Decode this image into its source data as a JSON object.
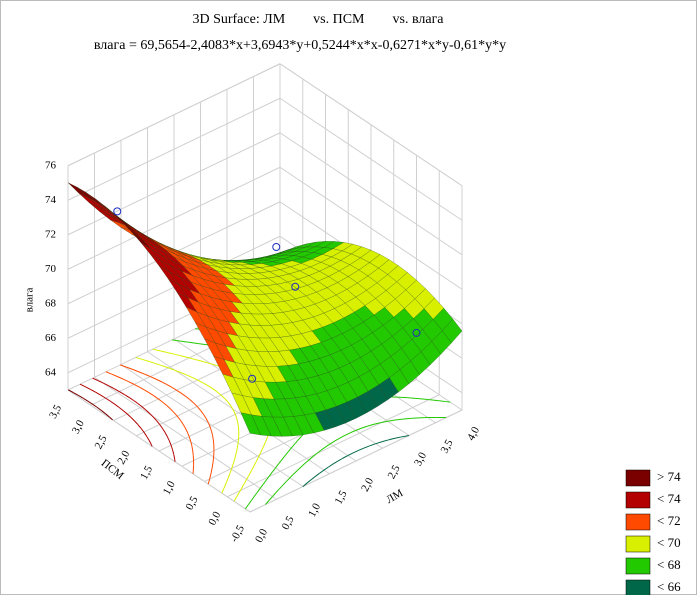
{
  "chart_data": {
    "type": "surface",
    "title": "3D Surface: ЛМ        vs. ПСМ        vs. влага",
    "subtitle": "влага = 69,5654-2,4083*x+3,6943*y+0,5244*x*x-0,6271*x*y-0,61*y*y",
    "coefficients": [
      69.5654,
      -2.4083,
      3.6943,
      0.5244,
      -0.6271,
      -0.61
    ],
    "x_label": "ЛМ",
    "y_label": "ПСМ",
    "z_label": "влага",
    "xlim": [
      0,
      4
    ],
    "ylim": [
      -0.5,
      3.5
    ],
    "zlim": [
      63,
      76
    ],
    "xticks": [
      {
        "value": 0,
        "label": "0,0"
      },
      {
        "value": 0.5,
        "label": "0,5"
      },
      {
        "value": 1,
        "label": "1,0"
      },
      {
        "value": 1.5,
        "label": "1,5"
      },
      {
        "value": 2,
        "label": "2,0"
      },
      {
        "value": 2.5,
        "label": "2,5"
      },
      {
        "value": 3,
        "label": "3,0"
      },
      {
        "value": 3.5,
        "label": "3,5"
      },
      {
        "value": 4,
        "label": "4,0"
      }
    ],
    "yticks": [
      {
        "value": -0.5,
        "label": "-0,5"
      },
      {
        "value": 0,
        "label": "0,0"
      },
      {
        "value": 0.5,
        "label": "0,5"
      },
      {
        "value": 1,
        "label": "1,0"
      },
      {
        "value": 1.5,
        "label": "1,5"
      },
      {
        "value": 2,
        "label": "2,0"
      },
      {
        "value": 2.5,
        "label": "2,5"
      },
      {
        "value": 3,
        "label": "3,0"
      },
      {
        "value": 3.5,
        "label": "3,5"
      }
    ],
    "zticks": [
      64,
      66,
      68,
      70,
      72,
      74,
      76
    ],
    "levels": [
      {
        "value": 74,
        "label": "> 74",
        "color": "#7a0000"
      },
      {
        "value": 74,
        "label": "< 74",
        "color": "#b30000"
      },
      {
        "value": 72,
        "label": "< 72",
        "color": "#ff4a00"
      },
      {
        "value": 70,
        "label": "< 70",
        "color": "#d8f000"
      },
      {
        "value": 68,
        "label": "< 68",
        "color": "#22c800"
      },
      {
        "value": 66,
        "label": "< 66",
        "color": "#006848"
      }
    ],
    "points": {
      "x": [
        0.5,
        3.5,
        3,
        4,
        1.5
      ],
      "y": [
        3,
        3,
        2,
        0.5,
        1.2
      ],
      "z": [
        73.5,
        67,
        67.2,
        65.7,
        65.5
      ],
      "color": "#2030c0"
    },
    "grid": true
  }
}
